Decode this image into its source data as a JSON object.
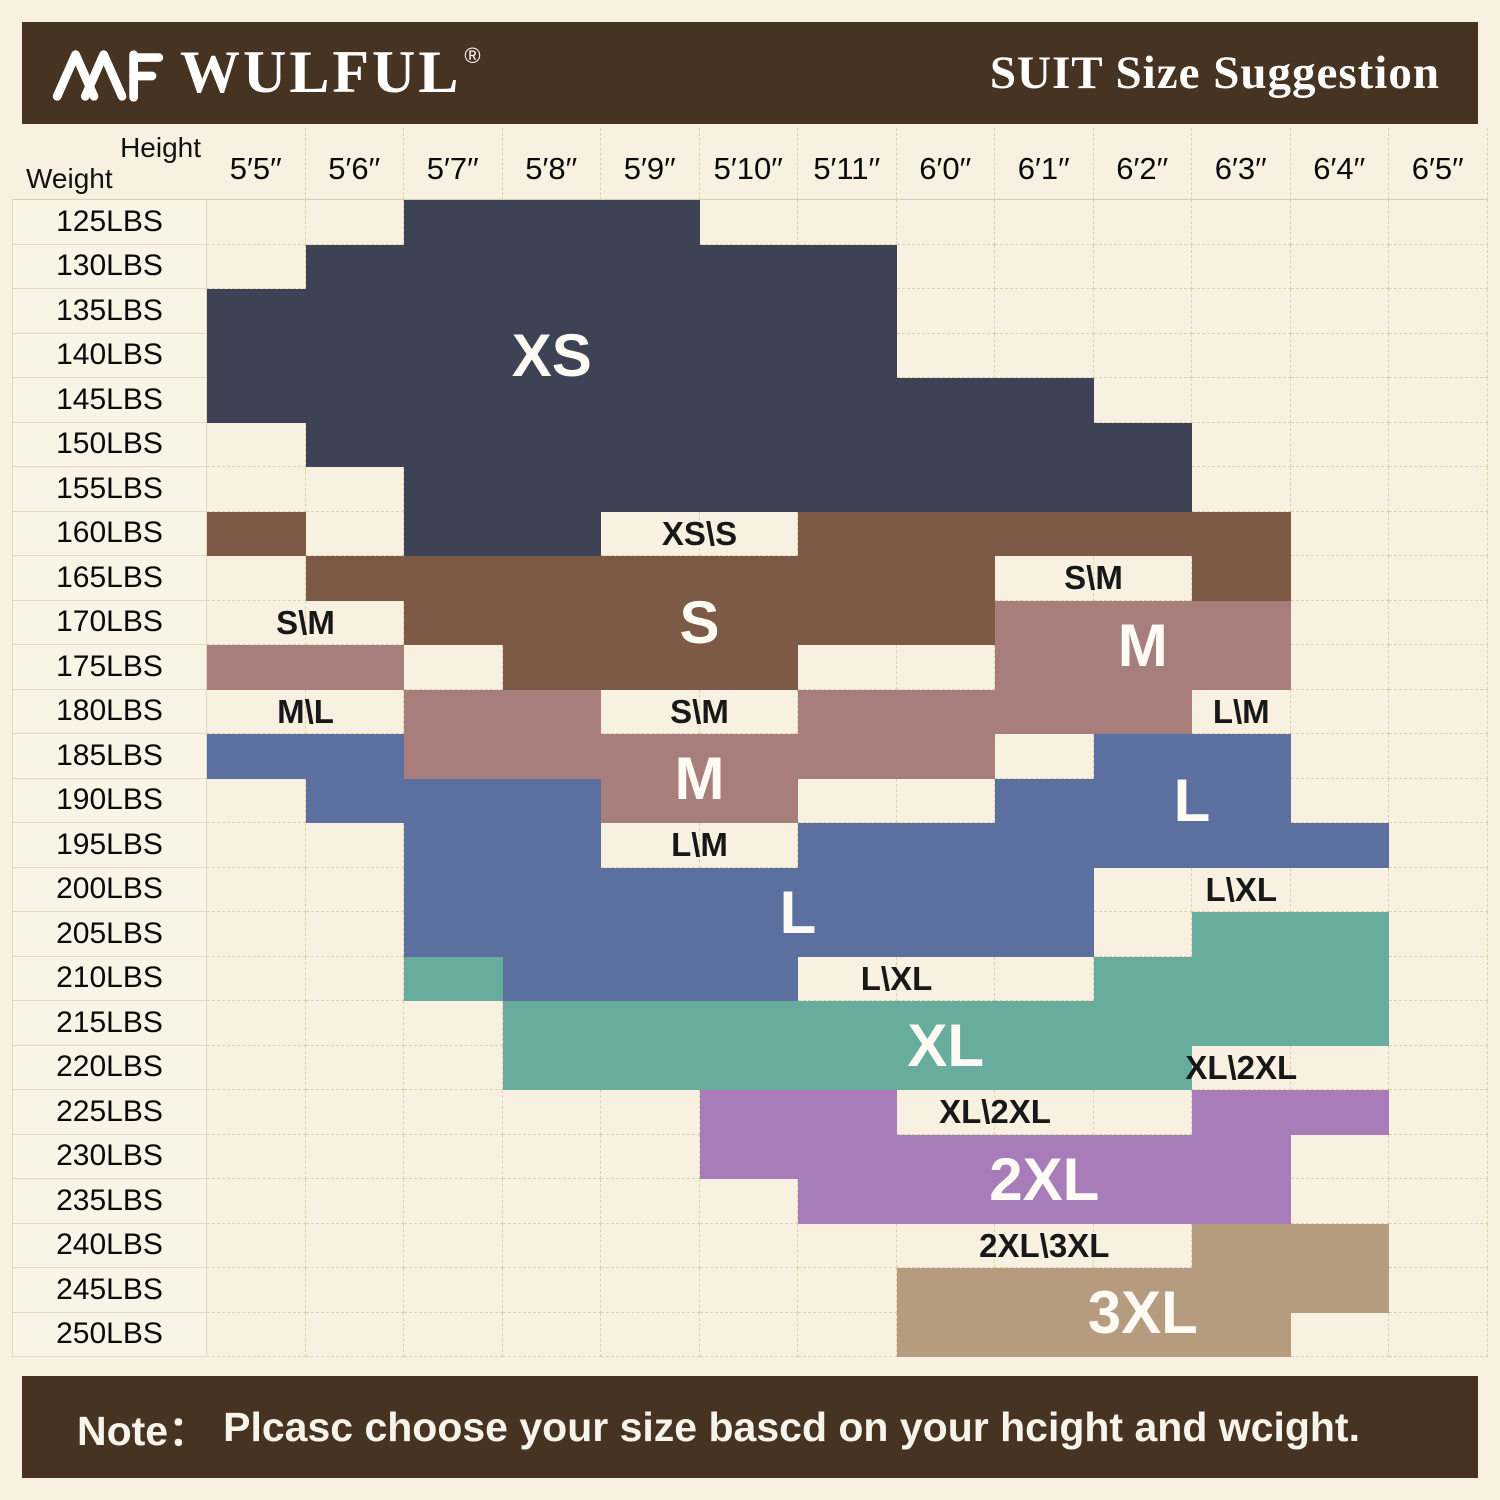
{
  "header": {
    "logo": "AMF",
    "brand": "WULFUL",
    "registered": "®",
    "title": "SUIT Size Suggestion"
  },
  "axes": {
    "corner_top": "Height",
    "corner_bottom": "Weight"
  },
  "colors": {
    "XS": "#3d4354",
    "S": "#7c5a45",
    "M": "#a87e7d",
    "L": "#5c70a0",
    "XL": "#67ac9d",
    "2XL": "#a77cb9",
    "3XL": "#b59c7e",
    "background": "#f8f1e1",
    "band": "#463322",
    "grid_line": "#ddd2a9",
    "label_dark": "#181818",
    "label_light": "#fdfbf4"
  },
  "chart_data": {
    "type": "heatmap",
    "title": "SUIT Size Suggestion",
    "x_axis_label": "Height",
    "y_axis_label": "Weight",
    "x_categories": [
      "5′5′′",
      "5′6′′",
      "5′7′′",
      "5′8′′",
      "5′9′′",
      "5′10′′",
      "5′11′′",
      "6′0′′",
      "6′1′′",
      "6′2′′",
      "6′3′′",
      "6′4′′",
      "6′5′′"
    ],
    "y_categories": [
      "125LBS",
      "130LBS",
      "135LBS",
      "140LBS",
      "145LBS",
      "150LBS",
      "155LBS",
      "160LBS",
      "165LBS",
      "170LBS",
      "175LBS",
      "180LBS",
      "185LBS",
      "190LBS",
      "195LBS",
      "200LBS",
      "205LBS",
      "210LBS",
      "215LBS",
      "220LBS",
      "225LBS",
      "230LBS",
      "235LBS",
      "240LBS",
      "245LBS",
      "250LBS"
    ],
    "sizes": [
      "XS",
      "S",
      "M",
      "L",
      "XL",
      "2XL",
      "3XL"
    ],
    "cells": [
      [
        "",
        "",
        "XS",
        "XS",
        "XS",
        "",
        "",
        "",
        "",
        "",
        "",
        "",
        ""
      ],
      [
        "",
        "XS",
        "XS",
        "XS",
        "XS",
        "XS",
        "XS",
        "",
        "",
        "",
        "",
        "",
        ""
      ],
      [
        "XS",
        "XS",
        "XS",
        "XS",
        "XS",
        "XS",
        "XS",
        "",
        "",
        "",
        "",
        "",
        ""
      ],
      [
        "XS",
        "XS",
        "XS",
        "XS",
        "XS",
        "XS",
        "XS",
        "",
        "",
        "",
        "",
        "",
        ""
      ],
      [
        "XS",
        "XS",
        "XS",
        "XS",
        "XS",
        "XS",
        "XS",
        "XS",
        "XS",
        "",
        "",
        "",
        ""
      ],
      [
        "",
        "XS",
        "XS",
        "XS",
        "XS",
        "XS",
        "XS",
        "XS",
        "XS",
        "XS",
        "",
        "",
        ""
      ],
      [
        "",
        "",
        "XS",
        "XS",
        "XS",
        "XS",
        "XS",
        "XS",
        "XS",
        "XS",
        "",
        "",
        ""
      ],
      [
        "S",
        "",
        "XS",
        "XS",
        "",
        "",
        "S",
        "S",
        "S",
        "S",
        "S",
        "",
        ""
      ],
      [
        "",
        "S",
        "S",
        "S",
        "S",
        "S",
        "S",
        "S",
        "",
        "",
        "S",
        "",
        ""
      ],
      [
        "",
        "",
        "S",
        "S",
        "S",
        "S",
        "S",
        "S",
        "M",
        "M",
        "M",
        "",
        ""
      ],
      [
        "M",
        "M",
        "",
        "S",
        "S",
        "S",
        "",
        "",
        "M",
        "M",
        "M",
        "",
        ""
      ],
      [
        "",
        "",
        "M",
        "M",
        "",
        "",
        "M",
        "M",
        "M",
        "M",
        "",
        "",
        ""
      ],
      [
        "L",
        "L",
        "M",
        "M",
        "M",
        "M",
        "M",
        "M",
        "",
        "L",
        "L",
        "",
        ""
      ],
      [
        "",
        "L",
        "L",
        "L",
        "M",
        "M",
        "",
        "",
        "L",
        "L",
        "L",
        "",
        ""
      ],
      [
        "",
        "",
        "L",
        "L",
        "",
        "",
        "L",
        "L",
        "L",
        "L",
        "L",
        "L",
        ""
      ],
      [
        "",
        "",
        "L",
        "L",
        "L",
        "L",
        "L",
        "L",
        "L",
        "",
        "",
        "",
        ""
      ],
      [
        "",
        "",
        "L",
        "L",
        "L",
        "L",
        "L",
        "L",
        "L",
        "",
        "XL",
        "XL",
        ""
      ],
      [
        "",
        "",
        "XL",
        "L",
        "L",
        "L",
        "",
        "",
        "",
        "XL",
        "XL",
        "XL",
        ""
      ],
      [
        "",
        "",
        "",
        "XL",
        "XL",
        "XL",
        "XL",
        "XL",
        "XL",
        "XL",
        "XL",
        "XL",
        ""
      ],
      [
        "",
        "",
        "",
        "XL",
        "XL",
        "XL",
        "XL",
        "XL",
        "XL",
        "XL",
        "",
        "",
        ""
      ],
      [
        "",
        "",
        "",
        "",
        "",
        "2XL",
        "2XL",
        "",
        "",
        "",
        "2XL",
        "2XL",
        ""
      ],
      [
        "",
        "",
        "",
        "",
        "",
        "2XL",
        "2XL",
        "2XL",
        "2XL",
        "2XL",
        "2XL",
        "",
        ""
      ],
      [
        "",
        "",
        "",
        "",
        "",
        "",
        "2XL",
        "2XL",
        "2XL",
        "2XL",
        "2XL",
        "",
        ""
      ],
      [
        "",
        "",
        "",
        "",
        "",
        "",
        "",
        "",
        "",
        "",
        "3XL",
        "3XL",
        ""
      ],
      [
        "",
        "",
        "",
        "",
        "",
        "",
        "",
        "3XL",
        "3XL",
        "3XL",
        "3XL",
        "3XL",
        ""
      ],
      [
        "",
        "",
        "",
        "",
        "",
        "",
        "",
        "3XL",
        "3XL",
        "3XL",
        "3XL",
        "",
        ""
      ]
    ],
    "overlay_labels": [
      {
        "text": "XS",
        "row": 3,
        "col": 3,
        "row_span": 1,
        "col_span": 1,
        "style": "large"
      },
      {
        "text": "XS\\S",
        "row": 7,
        "col": 4,
        "row_span": 1,
        "col_span": 2,
        "style": "small"
      },
      {
        "text": "S\\M",
        "row": 9,
        "col": 0,
        "row_span": 1,
        "col_span": 2,
        "style": "small"
      },
      {
        "text": "S",
        "row": 9,
        "col": 4,
        "row_span": 1,
        "col_span": 2,
        "style": "large"
      },
      {
        "text": "S\\M",
        "row": 8,
        "col": 8,
        "row_span": 1,
        "col_span": 2,
        "style": "small"
      },
      {
        "text": "M",
        "row": 9,
        "col": 9,
        "row_span": 2,
        "col_span": 1,
        "style": "large"
      },
      {
        "text": "M\\L",
        "row": 11,
        "col": 0,
        "row_span": 1,
        "col_span": 2,
        "style": "small"
      },
      {
        "text": "S\\M",
        "row": 11,
        "col": 4,
        "row_span": 1,
        "col_span": 2,
        "style": "small"
      },
      {
        "text": "L\\M",
        "row": 11,
        "col": 10,
        "row_span": 1,
        "col_span": 1,
        "style": "small"
      },
      {
        "text": "M",
        "row": 12,
        "col": 4,
        "row_span": 2,
        "col_span": 2,
        "style": "large"
      },
      {
        "text": "L",
        "row": 12,
        "col": 9,
        "row_span": 3,
        "col_span": 2,
        "style": "large"
      },
      {
        "text": "L\\M",
        "row": 14,
        "col": 4,
        "row_span": 1,
        "col_span": 2,
        "style": "small"
      },
      {
        "text": "L",
        "row": 15,
        "col": 5,
        "row_span": 2,
        "col_span": 2,
        "style": "large"
      },
      {
        "text": "L\\XL",
        "row": 15,
        "col": 10,
        "row_span": 1,
        "col_span": 1,
        "style": "small"
      },
      {
        "text": "L\\XL",
        "row": 17,
        "col": 6,
        "row_span": 1,
        "col_span": 2,
        "style": "small"
      },
      {
        "text": "XL",
        "row": 18,
        "col": 7,
        "row_span": 2,
        "col_span": 1,
        "style": "large"
      },
      {
        "text": "XL\\2XL",
        "row": 19,
        "col": 10,
        "row_span": 1,
        "col_span": 1,
        "style": "small"
      },
      {
        "text": "XL\\2XL",
        "row": 20,
        "col": 7,
        "row_span": 1,
        "col_span": 2,
        "style": "small"
      },
      {
        "text": "2XL",
        "row": 21,
        "col": 8,
        "row_span": 2,
        "col_span": 1,
        "style": "large"
      },
      {
        "text": "2XL\\3XL",
        "row": 23,
        "col": 8,
        "row_span": 1,
        "col_span": 1,
        "style": "small"
      },
      {
        "text": "3XL",
        "row": 24,
        "col": 9,
        "row_span": 2,
        "col_span": 1,
        "style": "large"
      }
    ]
  },
  "note": {
    "prefix": "Note：",
    "text": "Plcasc choose your size bascd on your hcight and wcight."
  }
}
